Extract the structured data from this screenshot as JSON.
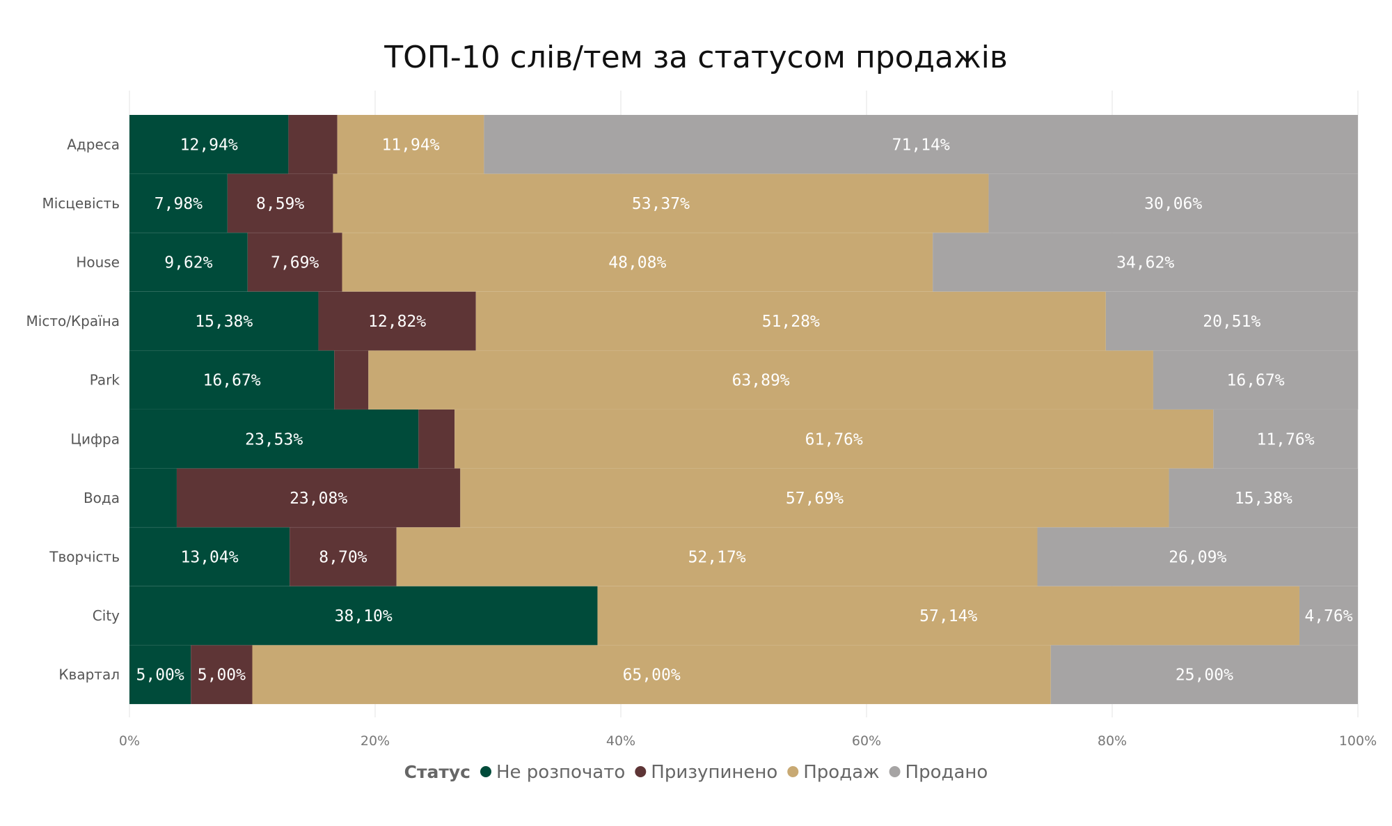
{
  "chart_data": {
    "type": "bar",
    "orientation": "horizontal",
    "stacked": "100%",
    "title": "ТОП-10 слів/тем за статусом продажів",
    "categories": [
      "Адреса",
      "Місцевість",
      "House",
      "Місто/Країна",
      "Park",
      "Цифра",
      "Вода",
      "Творчість",
      "City",
      "Квартал"
    ],
    "series": [
      {
        "name": "Не розпочато",
        "color": "#004B3A",
        "values": [
          12.94,
          7.98,
          9.62,
          15.38,
          16.67,
          23.53,
          3.85,
          13.04,
          38.1,
          5.0
        ],
        "labels": [
          "12,94%",
          "7,98%",
          "9,62%",
          "15,38%",
          "16,67%",
          "23,53%",
          "",
          "13,04%",
          "38,10%",
          "5,00%"
        ]
      },
      {
        "name": "Призупинено",
        "color": "#5E3536",
        "values": [
          3.98,
          8.59,
          7.69,
          12.82,
          2.78,
          2.94,
          23.08,
          8.7,
          0,
          5.0
        ],
        "labels": [
          "",
          "8,59%",
          "7,69%",
          "12,82%",
          "",
          "",
          "23,08%",
          "8,70%",
          "",
          "5,00%"
        ]
      },
      {
        "name": "Продаж",
        "color": "#C8A973",
        "values": [
          11.94,
          53.37,
          48.08,
          51.28,
          63.89,
          61.76,
          57.69,
          52.17,
          57.14,
          65.0
        ],
        "labels": [
          "11,94%",
          "53,37%",
          "48,08%",
          "51,28%",
          "63,89%",
          "61,76%",
          "57,69%",
          "52,17%",
          "57,14%",
          "65,00%"
        ]
      },
      {
        "name": "Продано",
        "color": "#A6A4A4",
        "values": [
          71.14,
          30.06,
          34.62,
          20.51,
          16.67,
          11.76,
          15.38,
          26.09,
          4.76,
          25.0
        ],
        "labels": [
          "71,14%",
          "30,06%",
          "34,62%",
          "20,51%",
          "16,67%",
          "11,76%",
          "15,38%",
          "26,09%",
          "4,76%",
          "25,00%"
        ]
      }
    ],
    "xlim": [
      0,
      100
    ],
    "xticks": [
      "0%",
      "20%",
      "40%",
      "60%",
      "80%",
      "100%"
    ],
    "grid": true,
    "legend": {
      "title": "Статус",
      "placement": "bottom-center"
    }
  }
}
